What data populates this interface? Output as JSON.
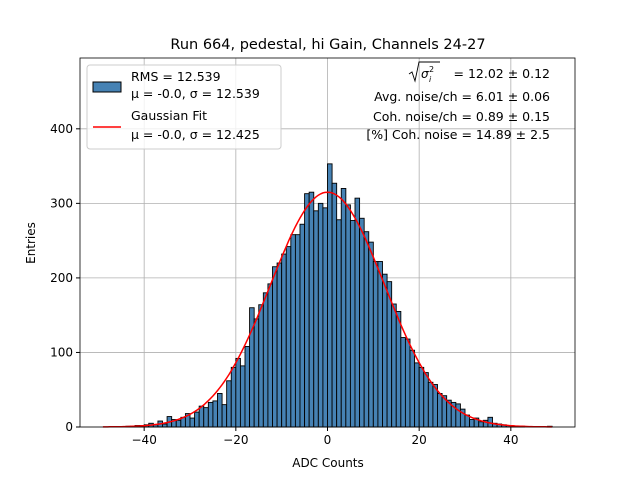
{
  "chart_data": {
    "type": "bar",
    "title": "Run 664, pedestal, hi Gain, Channels 24-27",
    "xlabel": "ADC Counts",
    "ylabel": "Entries",
    "xlim": [
      -54,
      54
    ],
    "ylim": [
      0,
      495
    ],
    "xticks": [
      -40,
      -20,
      0,
      20,
      40
    ],
    "yticks": [
      0,
      100,
      200,
      300,
      400
    ],
    "grid": true,
    "bar_color": "#4682b4",
    "bin_width": 1,
    "bin_left_edges": [
      -50,
      -49,
      -48,
      -47,
      -46,
      -45,
      -44,
      -43,
      -42,
      -41,
      -40,
      -39,
      -38,
      -37,
      -36,
      -35,
      -34,
      -33,
      -32,
      -31,
      -30,
      -29,
      -28,
      -27,
      -26,
      -25,
      -24,
      -23,
      -22,
      -21,
      -20,
      -19,
      -18,
      -17,
      -16,
      -15,
      -14,
      -13,
      -12,
      -11,
      -10,
      -9,
      -8,
      -7,
      -6,
      -5,
      -4,
      -3,
      -2,
      -1,
      0,
      1,
      2,
      3,
      4,
      5,
      6,
      7,
      8,
      9,
      10,
      11,
      12,
      13,
      14,
      15,
      16,
      17,
      18,
      19,
      20,
      21,
      22,
      23,
      24,
      25,
      26,
      27,
      28,
      29,
      30,
      31,
      32,
      33,
      34,
      35,
      36,
      37,
      38,
      39,
      40,
      41,
      42,
      43,
      44,
      45,
      46,
      47,
      48
    ],
    "values": [
      0,
      0,
      0,
      0,
      0,
      0,
      1,
      1,
      2,
      2,
      3,
      5,
      3,
      8,
      4,
      14,
      10,
      9,
      13,
      18,
      12,
      20,
      28,
      26,
      33,
      35,
      45,
      30,
      62,
      80,
      92,
      82,
      108,
      160,
      145,
      164,
      180,
      192,
      215,
      220,
      232,
      242,
      258,
      258,
      272,
      313,
      315,
      290,
      300,
      294,
      353,
      327,
      278,
      320,
      298,
      277,
      307,
      280,
      262,
      248,
      222,
      222,
      205,
      195,
      165,
      155,
      120,
      118,
      103,
      86,
      80,
      73,
      60,
      57,
      45,
      42,
      36,
      33,
      31,
      24,
      16,
      10,
      12,
      7,
      9,
      13,
      5,
      4,
      3,
      2,
      1,
      1,
      1,
      0,
      0,
      0,
      0,
      0,
      1
    ],
    "fit": {
      "mu": 0.0,
      "sigma": 12.425,
      "amplitude": 315,
      "color": "#ff0000"
    },
    "legend": {
      "placement": "upper-left",
      "entries": [
        {
          "line1": "RMS = 12.539",
          "line2": "μ = -0.0, σ = 12.539",
          "marker": "patch"
        },
        {
          "line1": "Gaussian Fit",
          "line2": "μ = -0.0, σ = 12.425",
          "marker": "line"
        }
      ]
    },
    "annotations": {
      "sqrt_label": "= 12.02 ± 0.12",
      "avg_noise": "Avg. noise/ch = 6.01 ± 0.06",
      "coh_noise": "Coh. noise/ch = 0.89 ± 0.15",
      "pct_coh": "[%] Coh. noise = 14.89 ± 2.5"
    }
  }
}
